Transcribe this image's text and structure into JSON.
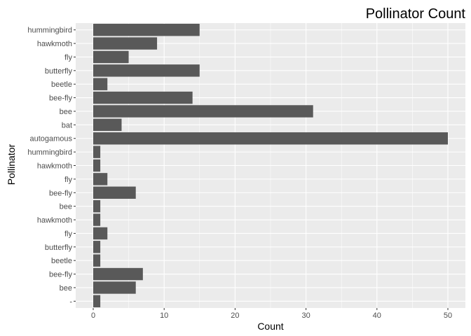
{
  "chart_data": {
    "type": "bar",
    "orientation": "horizontal",
    "title": "Pollinator Count",
    "xlabel": "Count",
    "ylabel": "Pollinator",
    "xlim": [
      0,
      50
    ],
    "x_ticks": [
      0,
      10,
      20,
      30,
      40,
      50
    ],
    "grid": true,
    "categories": [
      "hummingbird",
      "hawkmoth",
      "fly",
      "butterfly",
      "beetle",
      "bee-fly",
      "bee",
      "bat",
      "autogamous",
      "hummingbird",
      "hawkmoth",
      "fly",
      "bee-fly",
      "bee",
      "hawkmoth",
      "fly",
      "butterfly",
      "beetle",
      "bee-fly",
      "bee",
      "-"
    ],
    "values": [
      15,
      9,
      5,
      15,
      2,
      14,
      31,
      4,
      50,
      1,
      1,
      2,
      6,
      1,
      1,
      2,
      1,
      1,
      7,
      6,
      1
    ],
    "colors": {
      "panel": "#ebebeb",
      "grid_major": "#ffffff",
      "bar": "#595959",
      "tick": "#333333"
    }
  }
}
